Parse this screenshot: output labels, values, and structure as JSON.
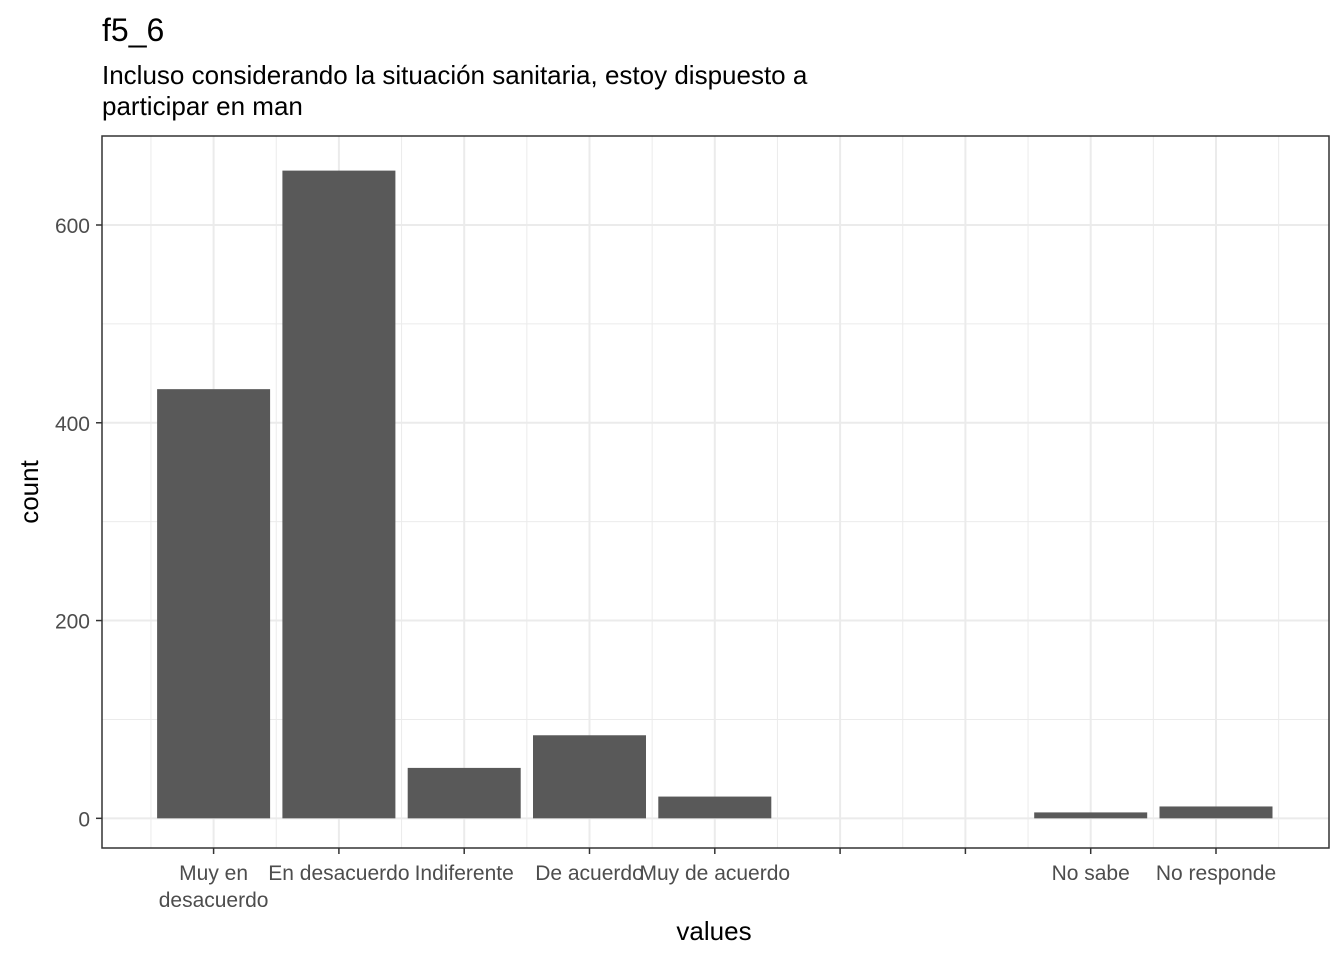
{
  "chart_data": {
    "type": "bar",
    "title": "f5_6",
    "subtitle": [
      "Incluso considerando la situación sanitaria, estoy dispuesto a",
      "participar en man"
    ],
    "xlabel": "values",
    "ylabel": "count",
    "ylim": [
      -30,
      690
    ],
    "yticks": [
      0,
      200,
      400,
      600
    ],
    "categories": [
      [
        "Muy en",
        "desacuerdo"
      ],
      [
        "En desacuerdo"
      ],
      [
        "Indiferente"
      ],
      [
        "De acuerdo"
      ],
      [
        "Muy de acuerdo"
      ],
      [],
      [],
      [
        "No sabe"
      ],
      [
        "No responde"
      ]
    ],
    "values": [
      434,
      655,
      51,
      84,
      22,
      null,
      null,
      6,
      12
    ],
    "grid": true,
    "colors": {
      "bar": "#595959",
      "grid": "#ebebeb",
      "panel_border": "#333333",
      "text": "#4d4d4d",
      "title": "#000000"
    }
  }
}
